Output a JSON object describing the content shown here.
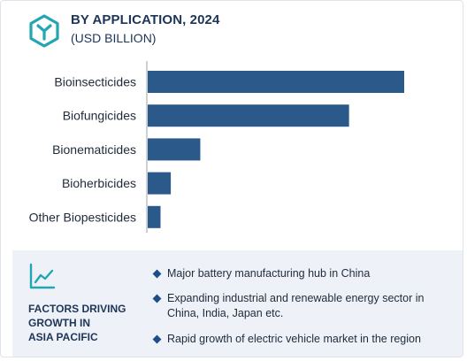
{
  "header": {
    "title": "BY APPLICATION, 2024",
    "subtitle": "(USD BILLION)",
    "icon": "hexagon-y-logo-icon"
  },
  "colors": {
    "bar": "#2b5a8a",
    "heading": "#1d3557",
    "panel": "#eef2f8",
    "accent": "#1d4e89"
  },
  "chart_data": {
    "type": "bar",
    "orientation": "horizontal",
    "title": "BY APPLICATION, 2024",
    "subtitle": "(USD BILLION)",
    "categories": [
      "Bioinsecticides",
      "Biofungicides",
      "Bionematicides",
      "Bioherbicides",
      "Other Biopesticides"
    ],
    "values": [
      100,
      78.5,
      20.5,
      9,
      5
    ],
    "xlim": [
      0,
      100
    ],
    "grid": false,
    "legend": "none",
    "value_axis_labels": false
  },
  "factors": {
    "icon": "trend-line-icon",
    "title_lines": [
      "FACTORS DRIVING",
      "GROWTH IN",
      "ASIA PACIFIC"
    ],
    "bullets": [
      "Major battery manufacturing hub in China",
      "Expanding industrial and renewable energy sector in China, India, Japan etc.",
      "Rapid growth of electric vehicle market in the region"
    ]
  }
}
